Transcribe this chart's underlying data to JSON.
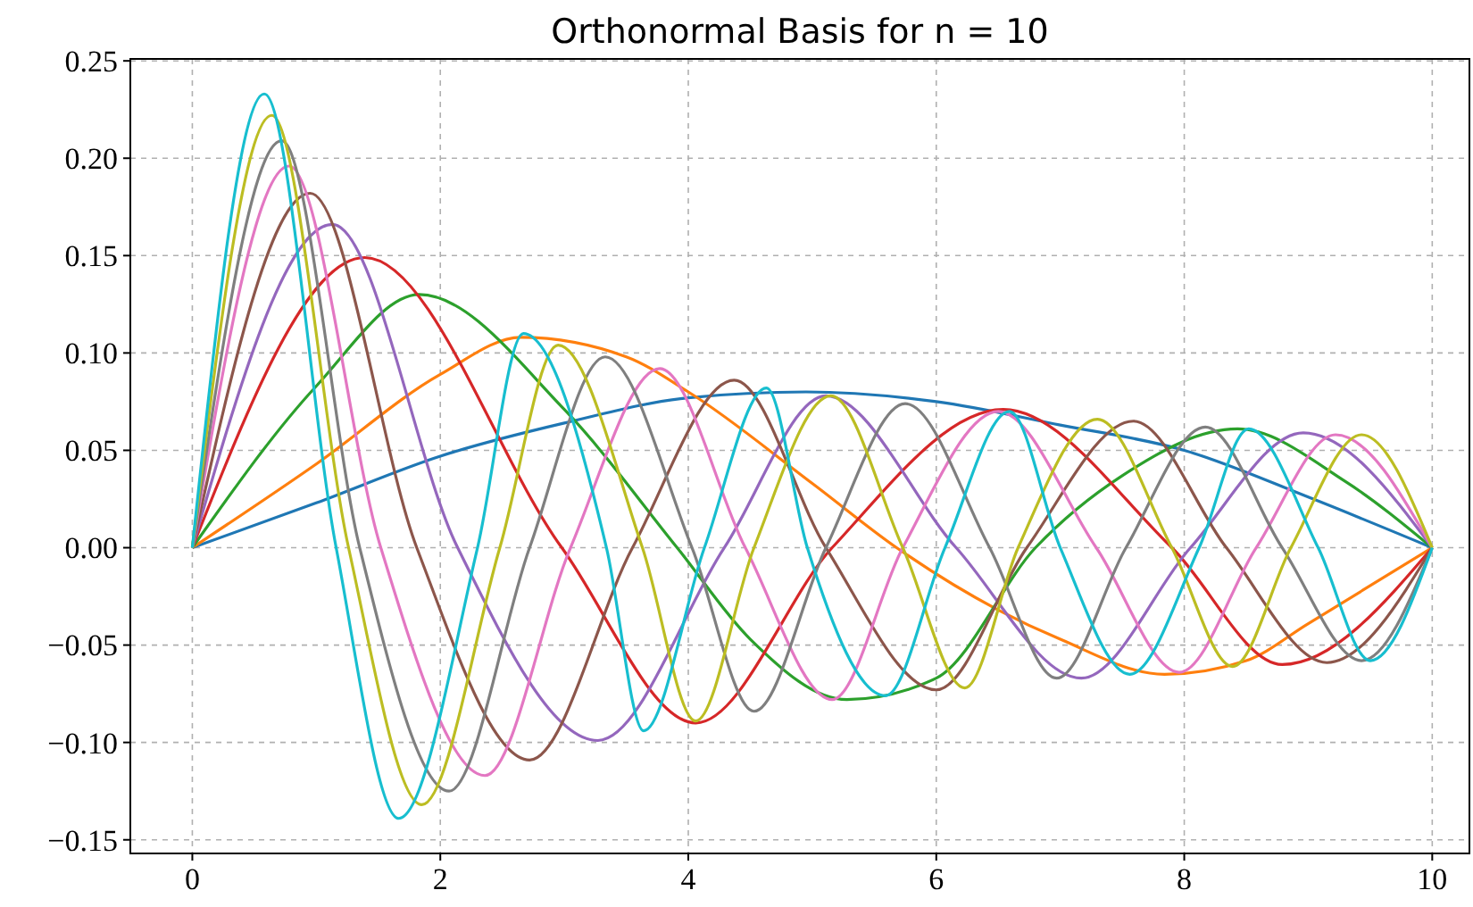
{
  "chart_data": {
    "type": "line",
    "title": "Orthonormal Basis for n = 10",
    "xlim": [
      -0.5,
      10.3
    ],
    "ylim": [
      -0.157,
      0.251
    ],
    "xticks": [
      0,
      2,
      4,
      6,
      8,
      10
    ],
    "yticks": [
      {
        "value": -0.15,
        "label": "−0.15"
      },
      {
        "value": -0.1,
        "label": "−0.10"
      },
      {
        "value": -0.05,
        "label": "−0.05"
      },
      {
        "value": 0,
        "label": "0.00"
      },
      {
        "value": 0.05,
        "label": "0.05"
      },
      {
        "value": 0.1,
        "label": "0.10"
      },
      {
        "value": 0.15,
        "label": "0.15"
      },
      {
        "value": 0.2,
        "label": "0.20"
      },
      {
        "value": 0.25,
        "label": "0.25"
      }
    ],
    "grid": true,
    "line_style": "solid",
    "marker": "none",
    "series": [
      {
        "color": "#1f77b4",
        "x": [
          0,
          1,
          2,
          3,
          4,
          4.95,
          6,
          7,
          8,
          9,
          10
        ],
        "values": [
          0,
          0.023,
          0.047,
          0.064,
          0.077,
          0.08,
          0.075,
          0.063,
          0.05,
          0.026,
          0
        ]
      },
      {
        "color": "#ff7f0e",
        "x": [
          0,
          1,
          2,
          2.65,
          3.5,
          4,
          5,
          5.68,
          6.5,
          7,
          7.84,
          8.5,
          9,
          10
        ],
        "values": [
          0,
          0.043,
          0.089,
          0.108,
          0.098,
          0.08,
          0.033,
          0,
          -0.032,
          -0.047,
          -0.065,
          -0.058,
          -0.039,
          0
        ]
      },
      {
        "color": "#2ca02c",
        "x": [
          0,
          1,
          1.83,
          3,
          3.91,
          4.5,
          5.28,
          6,
          6.8,
          7.5,
          8.43,
          9.3,
          10
        ],
        "values": [
          0,
          0.083,
          0.13,
          0.071,
          0,
          -0.047,
          -0.078,
          -0.067,
          0,
          0.037,
          0.061,
          0.034,
          0
        ]
      },
      {
        "color": "#d62728",
        "x": [
          0,
          1.39,
          2.98,
          4.06,
          5.16,
          6.54,
          7.9,
          8.79,
          10
        ],
        "values": [
          0,
          0.149,
          0,
          -0.09,
          0,
          0.071,
          0,
          -0.06,
          0
        ]
      },
      {
        "color": "#9467bd",
        "x": [
          0,
          1.13,
          2.14,
          3.27,
          4.29,
          5.11,
          6.16,
          7.17,
          8.05,
          8.96,
          10
        ],
        "values": [
          0,
          0.166,
          0,
          -0.099,
          0,
          0.078,
          0,
          -0.067,
          0,
          0.059,
          0
        ]
      },
      {
        "color": "#8c564b",
        "x": [
          0,
          0.95,
          1.81,
          2.72,
          3.55,
          4.37,
          5.11,
          6.0,
          6.73,
          7.59,
          8.34,
          9.15,
          10
        ],
        "values": [
          0,
          0.182,
          0,
          -0.109,
          0,
          0.086,
          0,
          -0.073,
          0,
          0.065,
          0,
          -0.059,
          0
        ]
      },
      {
        "color": "#e377c2",
        "x": [
          0,
          0.78,
          1.52,
          2.36,
          3.05,
          3.77,
          4.46,
          5.16,
          5.73,
          6.5,
          7.29,
          7.96,
          8.58,
          9.22,
          10
        ],
        "values": [
          0,
          0.196,
          0,
          -0.117,
          0,
          0.092,
          0,
          -0.078,
          0,
          0.07,
          0,
          -0.064,
          0,
          0.058,
          0
        ]
      },
      {
        "color": "#7f7f7f",
        "x": [
          0,
          0.72,
          1.35,
          2.07,
          2.72,
          3.33,
          4.03,
          4.53,
          5.11,
          5.75,
          6.43,
          6.97,
          7.53,
          8.17,
          8.79,
          9.43,
          10
        ],
        "values": [
          0,
          0.209,
          0,
          -0.125,
          0,
          0.098,
          0,
          -0.084,
          0,
          0.074,
          0,
          -0.067,
          0,
          0.062,
          0,
          -0.058,
          0
        ]
      },
      {
        "color": "#bcbd22",
        "x": [
          0,
          0.64,
          1.26,
          1.85,
          2.48,
          2.95,
          3.63,
          4.06,
          4.53,
          5.15,
          5.73,
          6.23,
          6.66,
          7.3,
          7.9,
          8.39,
          8.86,
          9.43,
          10
        ],
        "values": [
          0,
          0.222,
          0,
          -0.132,
          0,
          0.104,
          0,
          -0.089,
          0,
          0.078,
          0,
          -0.072,
          0,
          0.066,
          0,
          -0.061,
          0,
          0.058,
          0
        ]
      },
      {
        "color": "#17becf",
        "x": [
          0,
          0.58,
          1.16,
          1.665,
          2.3,
          2.67,
          3.34,
          3.64,
          4.13,
          4.63,
          4.96,
          5.59,
          6.07,
          6.59,
          7.0,
          7.56,
          8.12,
          8.52,
          9.08,
          9.5,
          10
        ],
        "values": [
          0,
          0.233,
          0,
          -0.139,
          0,
          0.11,
          0,
          -0.094,
          0,
          0.082,
          0,
          -0.076,
          0,
          0.07,
          0,
          -0.065,
          0,
          0.061,
          0,
          -0.058,
          0
        ]
      }
    ]
  }
}
